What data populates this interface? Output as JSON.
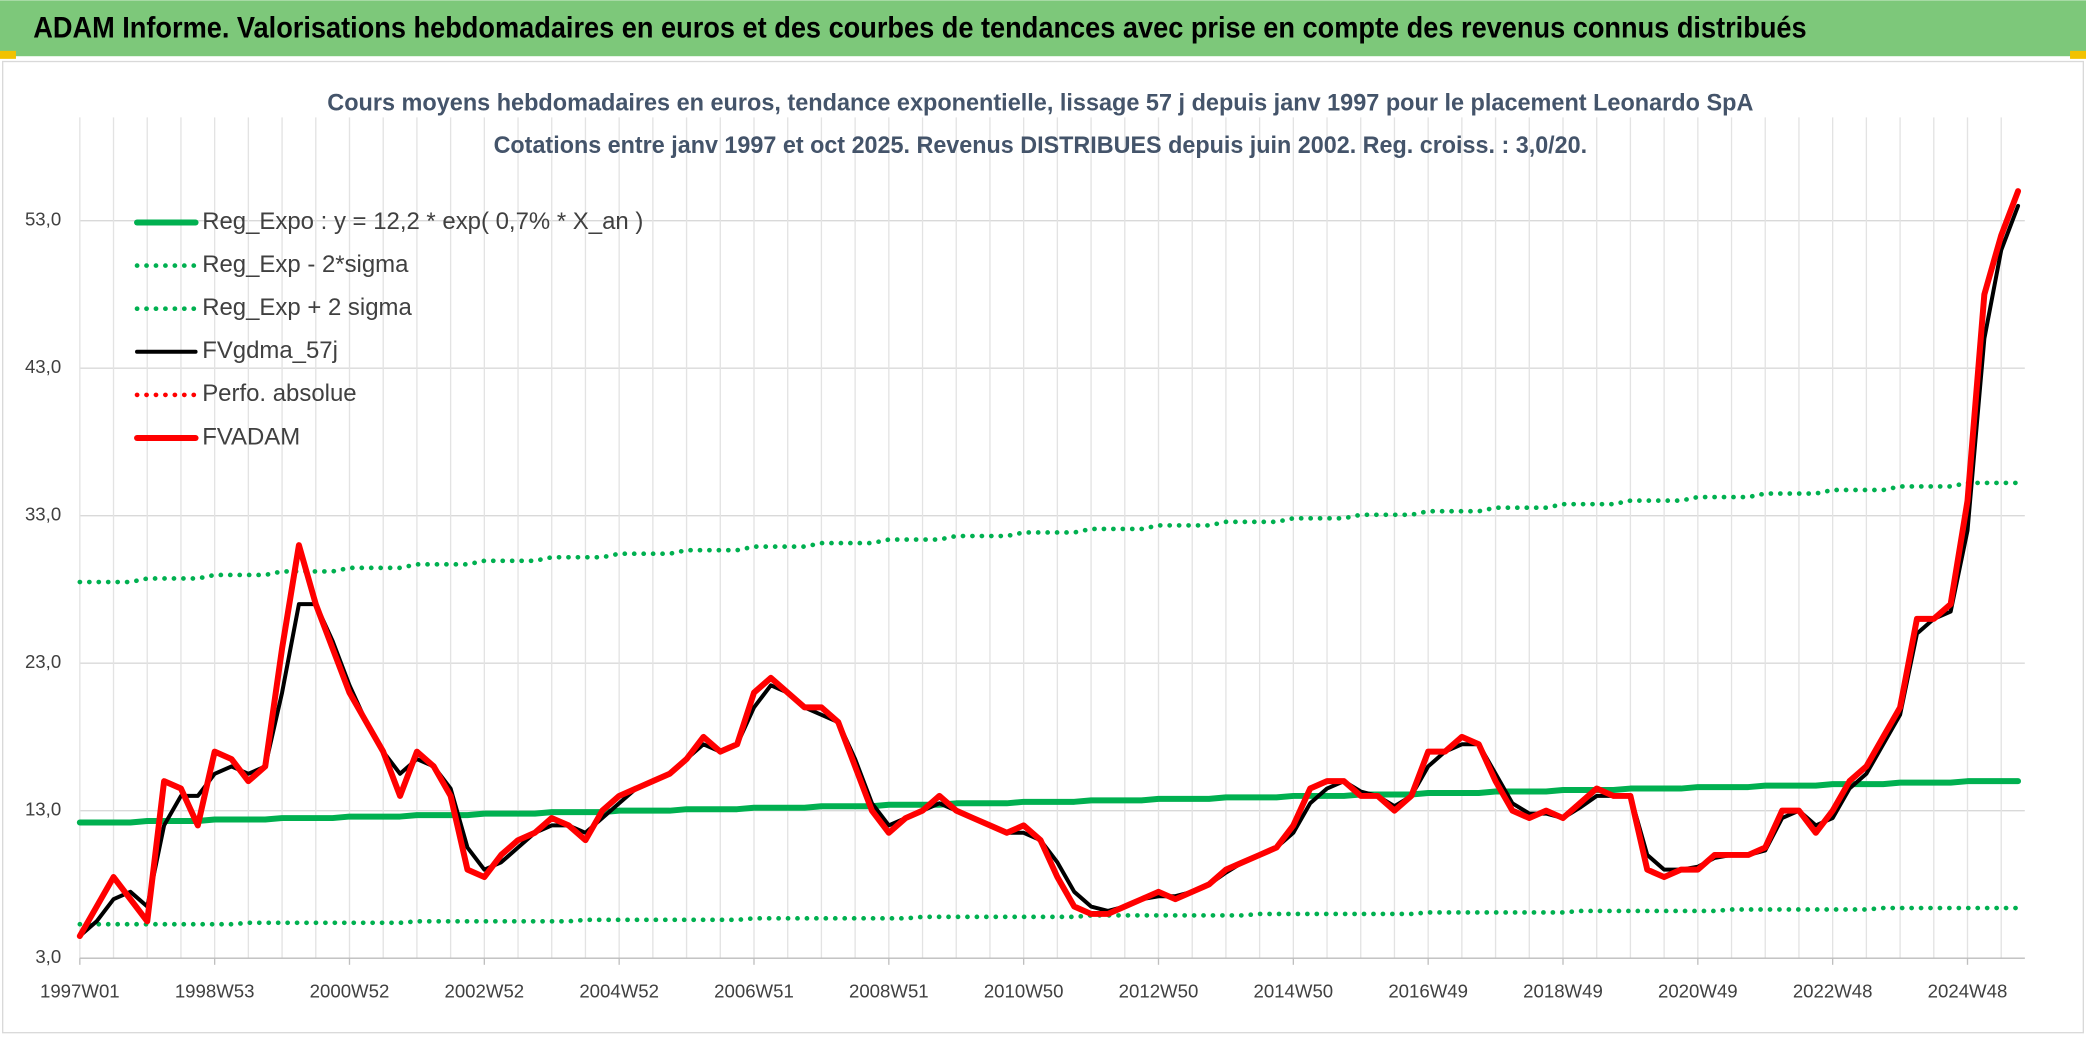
{
  "header": {
    "title": "ADAM Informe. Valorisations hebdomadaires en euros et des courbes de tendances avec prise en compte des revenus connus distribués"
  },
  "chart_data": {
    "type": "line",
    "title": "Cours moyens hebdomadaires en euros, tendance exponentielle, lissage 57 j depuis janv 1997 pour le placement Leonardo SpA",
    "subtitle": "Cotations entre janv 1997 et oct 2025. Revenus DISTRIBUES depuis juin 2002. Reg. croiss. : 3,0/20.",
    "categories": [
      "1997W01",
      null,
      null,
      null,
      null,
      null,
      null,
      null,
      "1998W53",
      null,
      null,
      null,
      null,
      null,
      null,
      null,
      "2000W52",
      null,
      null,
      null,
      null,
      null,
      null,
      null,
      "2002W52",
      null,
      null,
      null,
      null,
      null,
      null,
      null,
      "2004W52",
      null,
      null,
      null,
      null,
      null,
      null,
      null,
      "2006W51",
      null,
      null,
      null,
      null,
      null,
      null,
      null,
      "2008W51",
      null,
      null,
      null,
      null,
      null,
      null,
      null,
      "2010W50",
      null,
      null,
      null,
      null,
      null,
      null,
      null,
      "2012W50",
      null,
      null,
      null,
      null,
      null,
      null,
      null,
      "2014W50",
      null,
      null,
      null,
      null,
      null,
      null,
      null,
      "2016W49",
      null,
      null,
      null,
      null,
      null,
      null,
      null,
      "2018W49",
      null,
      null,
      null,
      null,
      null,
      null,
      null,
      "2020W49",
      null,
      null,
      null,
      null,
      null,
      null,
      null,
      "2022W48",
      null,
      null,
      null,
      null,
      null,
      null,
      null,
      "2024W48",
      null,
      null,
      null
    ],
    "ylim": [
      3,
      60
    ],
    "yticks": [
      {
        "value": 3,
        "label": "3,0"
      },
      {
        "value": 13,
        "label": "13,0"
      },
      {
        "value": 23,
        "label": "23,0"
      },
      {
        "value": 33,
        "label": "33,0"
      },
      {
        "value": 43,
        "label": "43,0"
      },
      {
        "value": 53,
        "label": "53,0"
      }
    ],
    "grid": true,
    "legend": "top-left",
    "series": [
      {
        "name": "Reg_Expo : y = 12,2 * exp( 0,7% *  X_an )",
        "color": "#00b050",
        "dash": "solid",
        "values": [
          12.2,
          12.2,
          12.2,
          12.2,
          12.3,
          12.3,
          12.3,
          12.3,
          12.4,
          12.4,
          12.4,
          12.4,
          12.5,
          12.5,
          12.5,
          12.5,
          12.6,
          12.6,
          12.6,
          12.6,
          12.7,
          12.7,
          12.7,
          12.7,
          12.8,
          12.8,
          12.8,
          12.8,
          12.9,
          12.9,
          12.9,
          12.9,
          13.0,
          13.0,
          13.0,
          13.0,
          13.1,
          13.1,
          13.1,
          13.1,
          13.2,
          13.2,
          13.2,
          13.2,
          13.3,
          13.3,
          13.3,
          13.3,
          13.4,
          13.4,
          13.4,
          13.4,
          13.5,
          13.5,
          13.5,
          13.5,
          13.6,
          13.6,
          13.6,
          13.6,
          13.7,
          13.7,
          13.7,
          13.7,
          13.8,
          13.8,
          13.8,
          13.8,
          13.9,
          13.9,
          13.9,
          13.9,
          14.0,
          14.0,
          14.0,
          14.0,
          14.1,
          14.1,
          14.1,
          14.1,
          14.2,
          14.2,
          14.2,
          14.2,
          14.3,
          14.3,
          14.3,
          14.3,
          14.4,
          14.4,
          14.4,
          14.4,
          14.5,
          14.5,
          14.5,
          14.5,
          14.6,
          14.6,
          14.6,
          14.6,
          14.7,
          14.7,
          14.7,
          14.7,
          14.8,
          14.8,
          14.8,
          14.8,
          14.9,
          14.9,
          14.9,
          14.9,
          15.0,
          15.0,
          15.0,
          15.0
        ]
      },
      {
        "name": "Reg_Exp - 2*sigma",
        "color": "#00b050",
        "dash": "dotted",
        "values": [
          5.3,
          5.3,
          5.3,
          5.3,
          5.3,
          5.3,
          5.3,
          5.3,
          5.3,
          5.3,
          5.4,
          5.4,
          5.4,
          5.4,
          5.4,
          5.4,
          5.4,
          5.4,
          5.4,
          5.4,
          5.5,
          5.5,
          5.5,
          5.5,
          5.5,
          5.5,
          5.5,
          5.5,
          5.5,
          5.5,
          5.6,
          5.6,
          5.6,
          5.6,
          5.6,
          5.6,
          5.6,
          5.6,
          5.6,
          5.6,
          5.7,
          5.7,
          5.7,
          5.7,
          5.7,
          5.7,
          5.7,
          5.7,
          5.7,
          5.7,
          5.8,
          5.8,
          5.8,
          5.8,
          5.8,
          5.8,
          5.8,
          5.8,
          5.8,
          5.8,
          5.9,
          5.9,
          5.9,
          5.9,
          5.9,
          5.9,
          5.9,
          5.9,
          5.9,
          5.9,
          6.0,
          6.0,
          6.0,
          6.0,
          6.0,
          6.0,
          6.0,
          6.0,
          6.0,
          6.0,
          6.1,
          6.1,
          6.1,
          6.1,
          6.1,
          6.1,
          6.1,
          6.1,
          6.1,
          6.2,
          6.2,
          6.2,
          6.2,
          6.2,
          6.2,
          6.2,
          6.2,
          6.2,
          6.3,
          6.3,
          6.3,
          6.3,
          6.3,
          6.3,
          6.3,
          6.3,
          6.3,
          6.4,
          6.4,
          6.4,
          6.4,
          6.4,
          6.4,
          6.4,
          6.4,
          6.4
        ]
      },
      {
        "name": "Reg_Exp + 2 sigma",
        "color": "#00b050",
        "dash": "dotted",
        "values": [
          28.5,
          28.5,
          28.5,
          28.5,
          28.74,
          28.74,
          28.74,
          28.74,
          28.98,
          28.98,
          28.98,
          28.98,
          29.22,
          29.22,
          29.22,
          29.22,
          29.46,
          29.46,
          29.46,
          29.46,
          29.7,
          29.7,
          29.7,
          29.7,
          29.94,
          29.94,
          29.94,
          29.94,
          30.18,
          30.18,
          30.18,
          30.18,
          30.42,
          30.42,
          30.42,
          30.42,
          30.66,
          30.66,
          30.66,
          30.66,
          30.9,
          30.9,
          30.9,
          30.9,
          31.14,
          31.14,
          31.14,
          31.14,
          31.38,
          31.38,
          31.38,
          31.38,
          31.62,
          31.62,
          31.62,
          31.62,
          31.86,
          31.86,
          31.86,
          31.86,
          32.1,
          32.1,
          32.1,
          32.1,
          32.34,
          32.34,
          32.34,
          32.34,
          32.58,
          32.58,
          32.58,
          32.58,
          32.82,
          32.82,
          32.82,
          32.82,
          33.06,
          33.06,
          33.06,
          33.06,
          33.3,
          33.3,
          33.3,
          33.3,
          33.54,
          33.54,
          33.54,
          33.54,
          33.78,
          33.78,
          33.78,
          33.78,
          34.02,
          34.02,
          34.02,
          34.02,
          34.26,
          34.26,
          34.26,
          34.26,
          34.5,
          34.5,
          34.5,
          34.5,
          34.74,
          34.74,
          34.74,
          34.74,
          34.98,
          34.98,
          34.98,
          34.98,
          35.22,
          35.22,
          35.22,
          35.22
        ]
      },
      {
        "name": "FVgdma_57j",
        "color": "#000000",
        "dash": "solid",
        "values": [
          4.5,
          5.5,
          7,
          7.5,
          6.5,
          12,
          14,
          14,
          15.5,
          16,
          15.5,
          16,
          21,
          27,
          27,
          24.5,
          21.5,
          19,
          17,
          15.5,
          16.5,
          16,
          14.5,
          10.5,
          9,
          9.5,
          10.5,
          11.5,
          12,
          12,
          11.5,
          12.5,
          13.5,
          14.5,
          15,
          15.5,
          16.5,
          17.5,
          17,
          17.5,
          20,
          21.5,
          21,
          20,
          19.5,
          19,
          16.5,
          13.5,
          12,
          12.5,
          13,
          13.5,
          13,
          12.5,
          12,
          11.5,
          11.5,
          11,
          9.5,
          7.5,
          6.5,
          6.2,
          6.5,
          7,
          7.2,
          7.2,
          7.5,
          8,
          8.8,
          9.5,
          10,
          10.5,
          11.5,
          13.5,
          14.5,
          15,
          14.3,
          14,
          13.3,
          14,
          16,
          17,
          17.5,
          17.5,
          15.5,
          13.5,
          12.8,
          12.8,
          12.5,
          13.2,
          14,
          14,
          14,
          10,
          9,
          9,
          9.2,
          9.8,
          10,
          10,
          10.3,
          12.5,
          13,
          12,
          12.5,
          14.5,
          15.5,
          17.5,
          19.5,
          25,
          26,
          26.5,
          32,
          45,
          51,
          54
        ]
      },
      {
        "name": "Perfo. absolue",
        "color": "#ff0000",
        "dash": "dotted",
        "values": [
          null,
          null,
          null,
          null,
          null,
          null,
          null,
          null,
          null,
          null,
          null,
          null,
          null,
          null,
          null,
          null,
          null,
          null,
          null,
          null,
          null,
          null,
          null,
          null,
          null,
          null,
          null,
          null,
          null,
          null,
          null,
          null,
          null,
          null,
          null,
          null,
          null,
          null,
          null,
          null,
          null,
          null,
          null,
          null,
          null,
          null,
          null,
          null,
          null,
          null,
          null,
          null,
          null,
          null,
          null,
          null,
          null,
          null,
          null,
          null,
          null,
          null,
          null,
          null,
          null,
          null,
          null,
          null,
          null,
          null,
          null,
          null,
          null,
          null,
          null,
          null,
          null,
          null,
          null,
          null,
          null,
          null,
          null,
          null,
          null,
          null,
          null,
          null,
          null,
          null,
          null,
          null,
          null,
          null,
          null,
          null,
          null,
          null,
          null,
          null,
          null,
          null,
          null,
          null,
          null,
          null,
          null,
          null,
          null,
          null,
          null,
          null,
          null,
          null,
          null,
          null
        ]
      },
      {
        "name": "FVADAM",
        "color": "#ff0000",
        "dash": "solid",
        "values": [
          4.5,
          6.5,
          8.5,
          7,
          5.5,
          15,
          14.5,
          12,
          17,
          16.5,
          15,
          16,
          24,
          31,
          27,
          24,
          21,
          19,
          17,
          14,
          17,
          16,
          14,
          9,
          8.5,
          10,
          11,
          11.5,
          12.5,
          12,
          11,
          13,
          14,
          14.5,
          15,
          15.5,
          16.5,
          18,
          17,
          17.5,
          21,
          22,
          21,
          20,
          20,
          19,
          16,
          13,
          11.5,
          12.5,
          13,
          14,
          13,
          12.5,
          12,
          11.5,
          12,
          11,
          8.5,
          6.5,
          6,
          6,
          6.5,
          7,
          7.5,
          7,
          7.5,
          8,
          9,
          9.5,
          10,
          10.5,
          12,
          14.5,
          15,
          15,
          14,
          14,
          13,
          14,
          17,
          17,
          18,
          17.5,
          15,
          13,
          12.5,
          13,
          12.5,
          13.5,
          14.5,
          14,
          14,
          9,
          8.5,
          9,
          9,
          10,
          10,
          10,
          10.5,
          13,
          13,
          11.5,
          13,
          15,
          16,
          18,
          20,
          26,
          26,
          27,
          34,
          48,
          52,
          55
        ]
      }
    ]
  }
}
